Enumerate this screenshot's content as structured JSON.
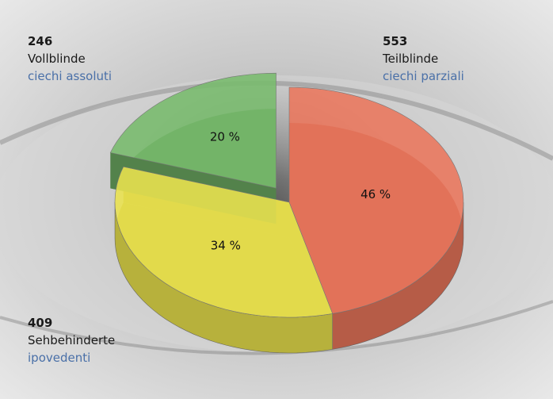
{
  "chart_data": {
    "type": "pie",
    "categories": [
      "Vollblinde",
      "Teilblinde",
      "Sehbehinderte"
    ],
    "categories_it": [
      "ciechi assoluti",
      "ciechi parziali",
      "ipovedenti"
    ],
    "counts": [
      246,
      553,
      409
    ],
    "values": [
      20,
      46,
      34
    ],
    "value_labels": [
      "20 %",
      "46 %",
      "34 %"
    ],
    "colors": [
      "#78bb6c",
      "#ea765c",
      "#ebe34e"
    ]
  }
}
